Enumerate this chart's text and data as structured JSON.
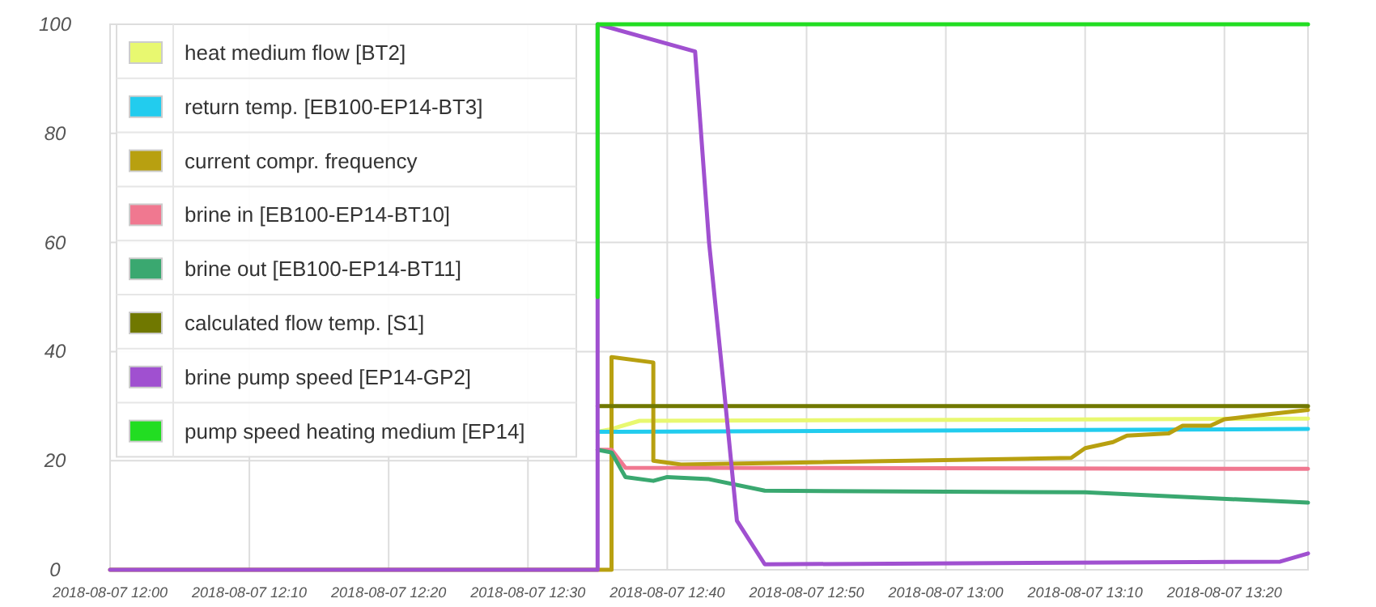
{
  "chart_data": {
    "type": "line",
    "xlim": [
      "2018-08-07T12:00",
      "2018-08-07T13:26"
    ],
    "ylim": [
      0,
      100
    ],
    "xticks": [
      {
        "value": "2018-08-07T12:00",
        "label": "2018-08-07 12:00"
      },
      {
        "value": "2018-08-07T12:10",
        "label": "2018-08-07 12:10"
      },
      {
        "value": "2018-08-07T12:20",
        "label": "2018-08-07 12:20"
      },
      {
        "value": "2018-08-07T12:30",
        "label": "2018-08-07 12:30"
      },
      {
        "value": "2018-08-07T12:40",
        "label": "2018-08-07 12:40"
      },
      {
        "value": "2018-08-07T12:50",
        "label": "2018-08-07 12:50"
      },
      {
        "value": "2018-08-07T13:00",
        "label": "2018-08-07 13:00"
      },
      {
        "value": "2018-08-07T13:10",
        "label": "2018-08-07 13:10"
      },
      {
        "value": "2018-08-07T13:20",
        "label": "2018-08-07 13:20"
      }
    ],
    "yticks": [
      0,
      20,
      40,
      60,
      80,
      100
    ],
    "grid": true,
    "legend": "top left",
    "marker": "none",
    "line_style": "solid",
    "series": [
      {
        "name": "heat medium flow [BT2]",
        "color": "#e8f870",
        "x": [
          "2018-08-07T12:35",
          "2018-08-07T12:36",
          "2018-08-07T12:38",
          "2018-08-07T13:26"
        ],
        "values": [
          25.3,
          25.8,
          27.3,
          27.7
        ]
      },
      {
        "name": "return temp. [EB100-EP14-BT3]",
        "color": "#22ccee",
        "x": [
          "2018-08-07T12:35",
          "2018-08-07T13:26"
        ],
        "values": [
          25.3,
          25.8
        ]
      },
      {
        "name": "current compr. frequency",
        "color": "#b8a010",
        "x": [
          "2018-08-07T12:00",
          "2018-08-07T12:36",
          "2018-08-07T12:36",
          "2018-08-07T12:39",
          "2018-08-07T12:39",
          "2018-08-07T12:41",
          "2018-08-07T13:09",
          "2018-08-07T13:10",
          "2018-08-07T13:12",
          "2018-08-07T13:13",
          "2018-08-07T13:16",
          "2018-08-07T13:17",
          "2018-08-07T13:19",
          "2018-08-07T13:20",
          "2018-08-07T13:22",
          "2018-08-07T13:26"
        ],
        "values": [
          0,
          0,
          39,
          38,
          20,
          19.3,
          20.5,
          22.3,
          23.4,
          24.6,
          25,
          26.4,
          26.4,
          27.6,
          28.2,
          29.3
        ]
      },
      {
        "name": "brine in [EB100-EP14-BT10]",
        "color": "#f07890",
        "x": [
          "2018-08-07T12:35",
          "2018-08-07T12:36",
          "2018-08-07T12:37",
          "2018-08-07T13:26"
        ],
        "values": [
          22,
          22,
          18.7,
          18.5
        ]
      },
      {
        "name": "brine out [EB100-EP14-BT11]",
        "color": "#3aa870",
        "x": [
          "2018-08-07T12:35",
          "2018-08-07T12:36",
          "2018-08-07T12:37",
          "2018-08-07T12:39",
          "2018-08-07T12:40",
          "2018-08-07T12:43",
          "2018-08-07T12:47",
          "2018-08-07T13:10",
          "2018-08-07T13:26"
        ],
        "values": [
          22,
          21.5,
          17,
          16.3,
          17,
          16.6,
          14.5,
          14.2,
          12.3
        ]
      },
      {
        "name": "calculated flow temp. [S1]",
        "color": "#707800",
        "x": [
          "2018-08-07T12:35",
          "2018-08-07T13:26"
        ],
        "values": [
          30,
          30
        ]
      },
      {
        "name": "brine pump speed [EP14-GP2]",
        "color": "#a050d0",
        "x": [
          "2018-08-07T12:00",
          "2018-08-07T12:35",
          "2018-08-07T12:35",
          "2018-08-07T12:42",
          "2018-08-07T12:43",
          "2018-08-07T12:44",
          "2018-08-07T12:45",
          "2018-08-07T12:47",
          "2018-08-07T13:24",
          "2018-08-07T13:26"
        ],
        "values": [
          0,
          0,
          100,
          95,
          60,
          35,
          9,
          1,
          1.5,
          3
        ]
      },
      {
        "name": "pump speed heating medium [EP14]",
        "color": "#22dd22",
        "x": [
          "2018-08-07T12:35",
          "2018-08-07T12:35",
          "2018-08-07T13:26"
        ],
        "values": [
          50,
          100,
          100
        ]
      }
    ]
  }
}
